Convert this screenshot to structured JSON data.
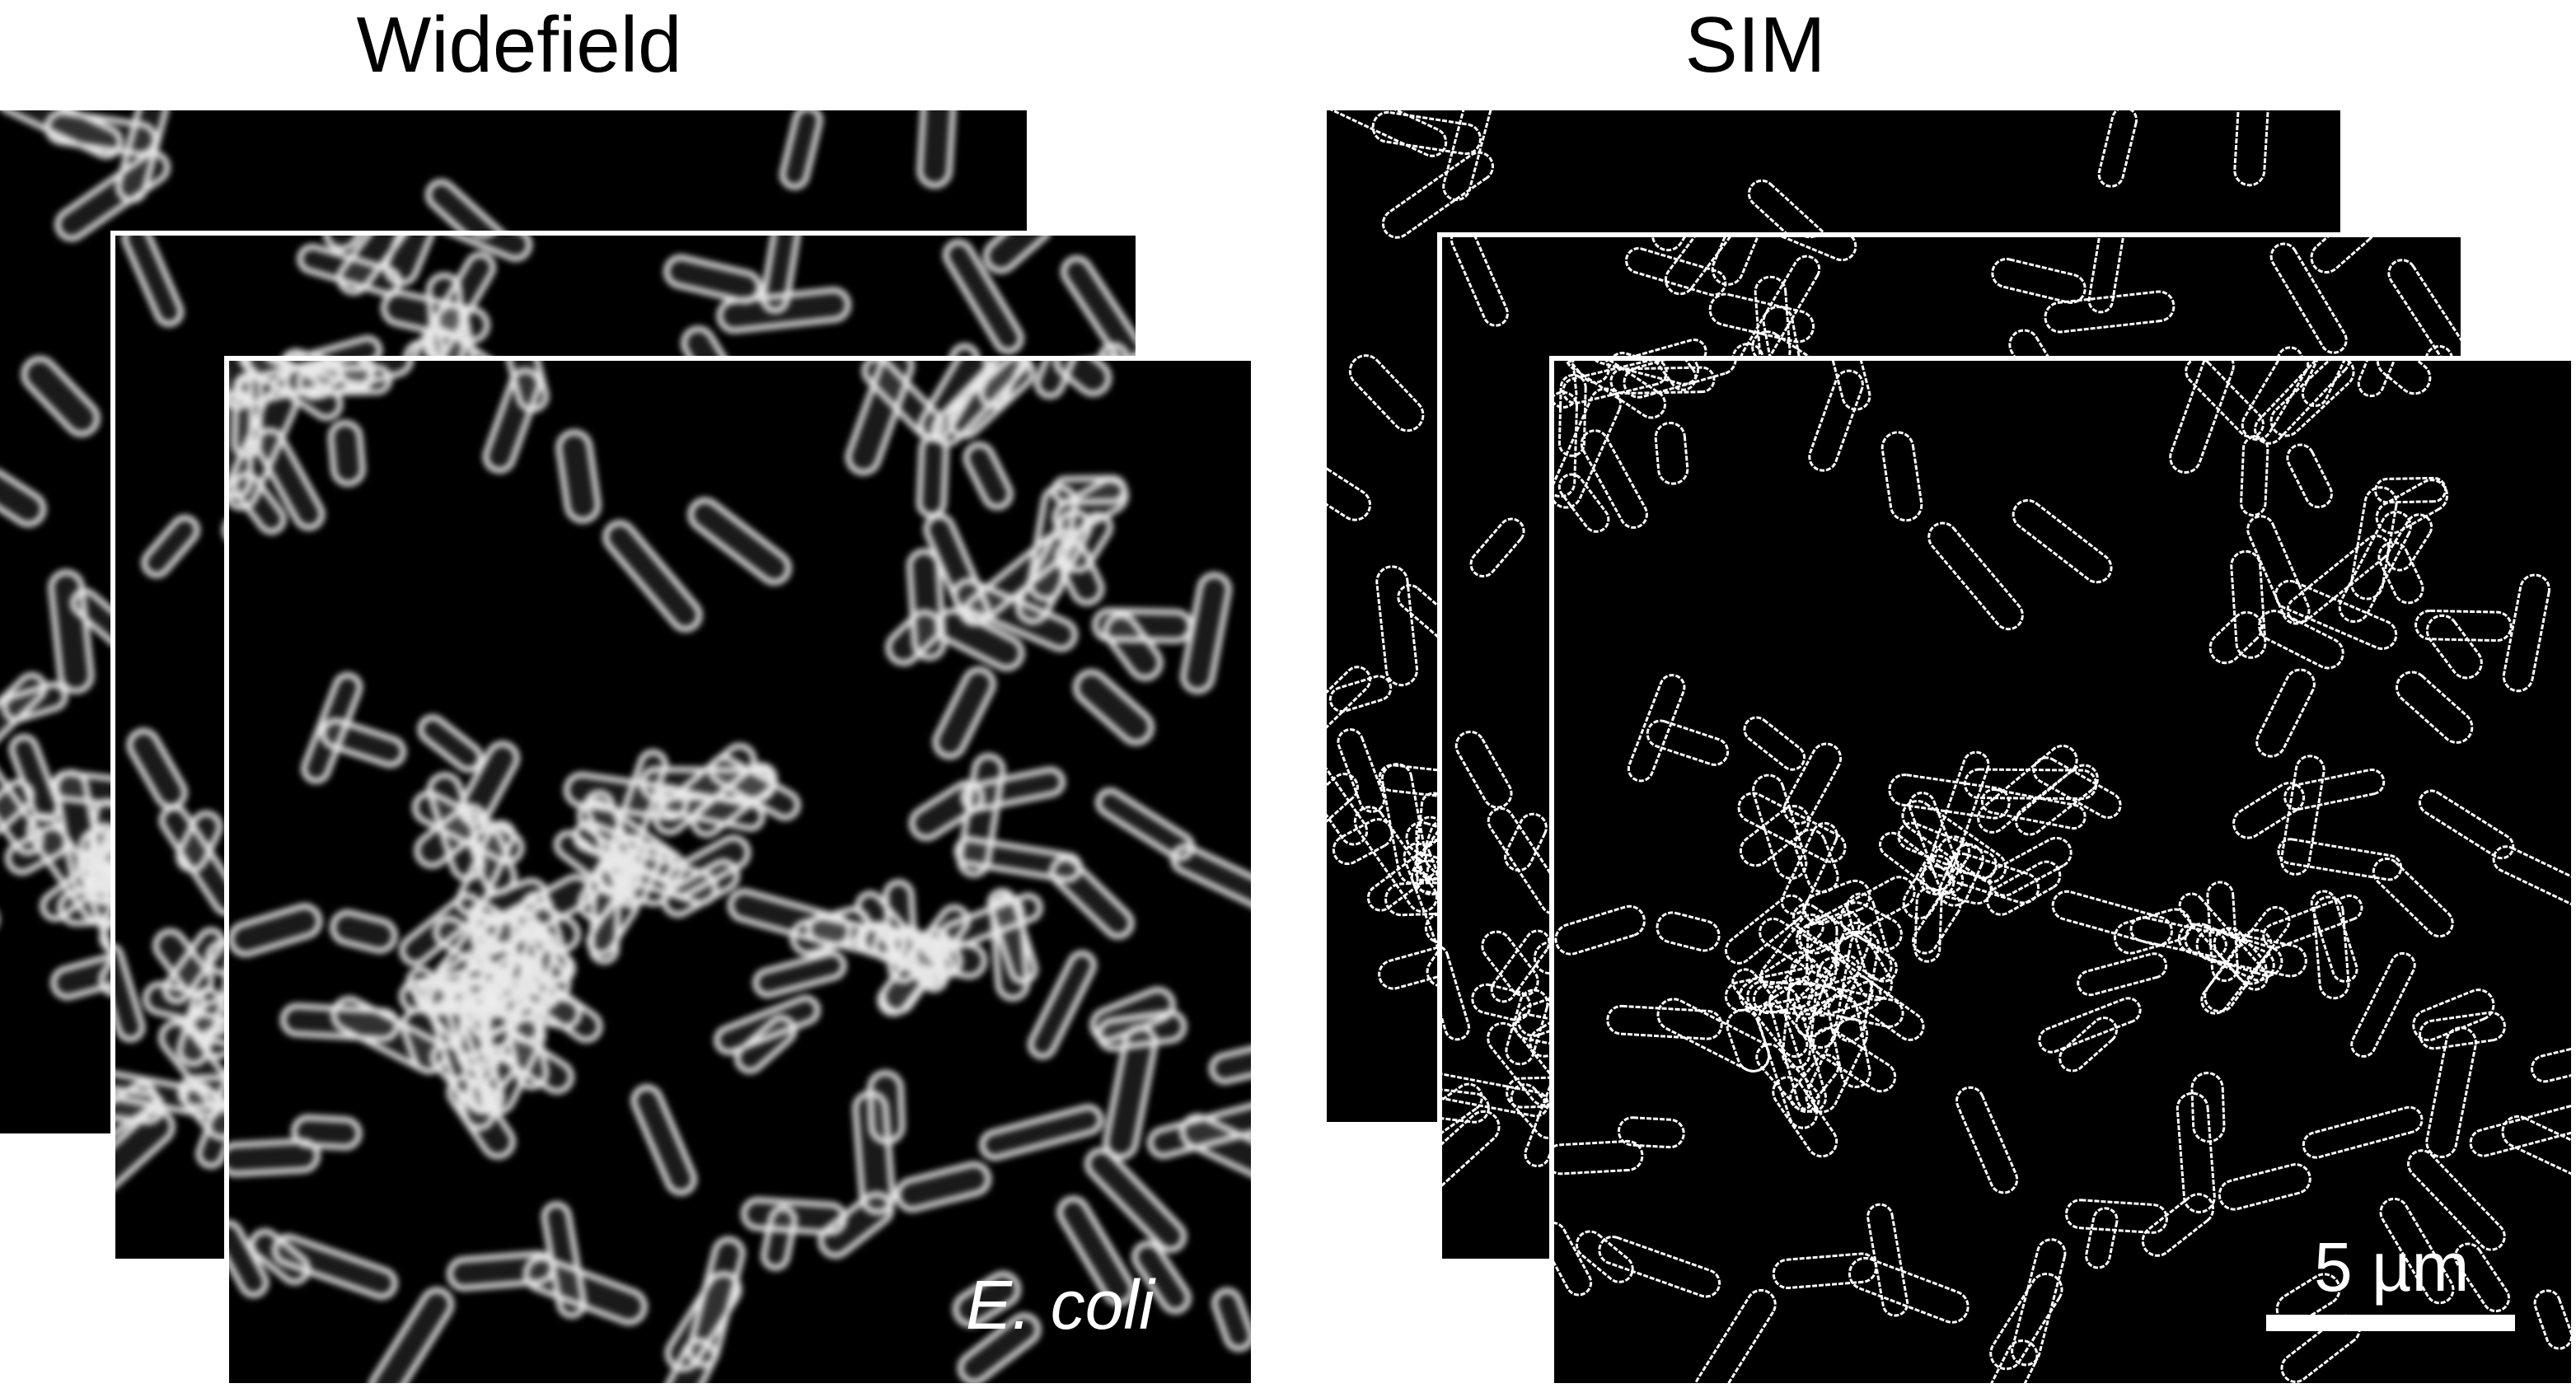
{
  "panels": {
    "widefield": {
      "title": "Widefield",
      "label": "E. coli"
    },
    "sim": {
      "title": "SIM"
    }
  },
  "scale_bar": {
    "label": "5 µm",
    "value": 5,
    "unit": "µm"
  },
  "colors": {
    "background": "#ffffff",
    "image_background": "#000000",
    "cell": "#ffffff"
  }
}
